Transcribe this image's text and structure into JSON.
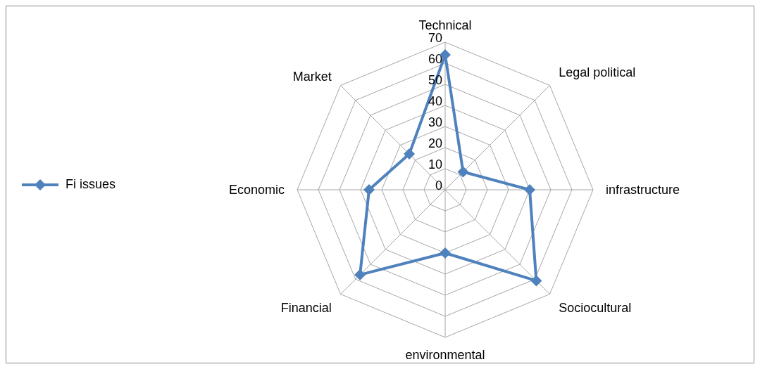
{
  "chart_data": {
    "type": "radar",
    "categories": [
      "Technical",
      "Legal political",
      "infrastructure",
      "Sociocultural",
      "environmental",
      "Financial",
      "Economic",
      "Market"
    ],
    "series": [
      {
        "name": "Fi issues",
        "color": "#4f81bd",
        "values": [
          64,
          12,
          40,
          61,
          30,
          57,
          36,
          24
        ]
      }
    ],
    "ylim": [
      0,
      70
    ],
    "yticks": [
      0,
      10,
      20,
      30,
      40,
      50,
      60,
      70
    ],
    "grid": true,
    "legend": "left",
    "marker": "diamond",
    "line_style": "solid"
  }
}
